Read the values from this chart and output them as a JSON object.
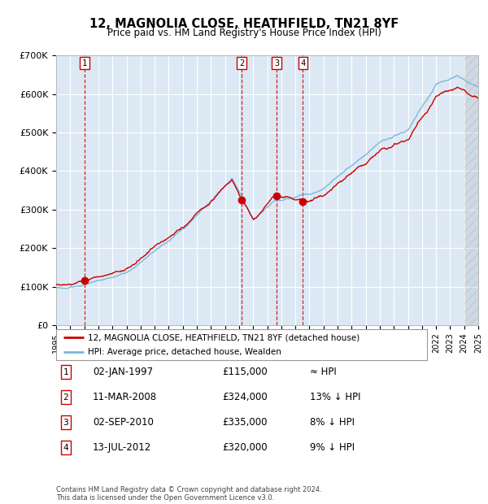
{
  "title": "12, MAGNOLIA CLOSE, HEATHFIELD, TN21 8YF",
  "subtitle": "Price paid vs. HM Land Registry's House Price Index (HPI)",
  "ylim": [
    0,
    700000
  ],
  "xlim": [
    1995,
    2025
  ],
  "yticks": [
    0,
    100000,
    200000,
    300000,
    400000,
    500000,
    600000,
    700000
  ],
  "ytick_labels": [
    "£0",
    "£100K",
    "£200K",
    "£300K",
    "£400K",
    "£500K",
    "£600K",
    "£700K"
  ],
  "plot_bg_color": "#dce9f5",
  "grid_color": "#ffffff",
  "sale_dates_year": [
    1997.01,
    2008.19,
    2010.67,
    2012.53
  ],
  "sale_prices": [
    115000,
    324000,
    335000,
    320000
  ],
  "sale_labels": [
    "1",
    "2",
    "3",
    "4"
  ],
  "sale_marker_color": "#cc0000",
  "hpi_line_color": "#7ab8d9",
  "price_line_color": "#cc0000",
  "legend_label_price": "12, MAGNOLIA CLOSE, HEATHFIELD, TN21 8YF (detached house)",
  "legend_label_hpi": "HPI: Average price, detached house, Wealden",
  "footer_line1": "Contains HM Land Registry data © Crown copyright and database right 2024.",
  "footer_line2": "This data is licensed under the Open Government Licence v3.0.",
  "table_rows": [
    [
      "1",
      "02-JAN-1997",
      "£115,000",
      "≈ HPI"
    ],
    [
      "2",
      "11-MAR-2008",
      "£324,000",
      "13% ↓ HPI"
    ],
    [
      "3",
      "02-SEP-2010",
      "£335,000",
      "8% ↓ HPI"
    ],
    [
      "4",
      "13-JUL-2012",
      "£320,000",
      "9% ↓ HPI"
    ]
  ],
  "hatch_start_year": 2024.0
}
